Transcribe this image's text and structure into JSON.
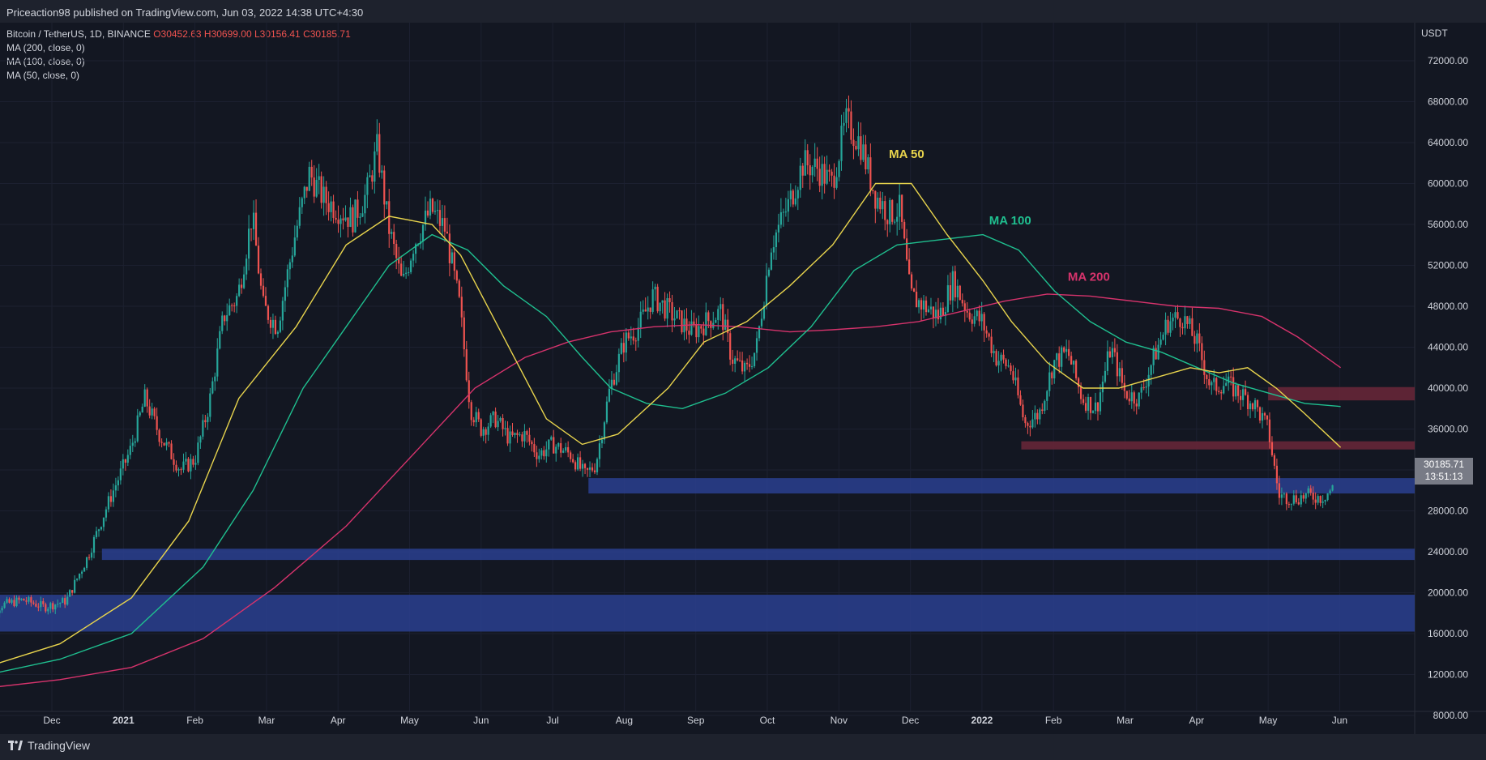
{
  "header": {
    "publish_line": "Priceaction98 published on TradingView.com, Jun 03, 2022 14:38 UTC+4:30"
  },
  "legend": {
    "symbol": "Bitcoin / TetherUS, 1D, BINANCE",
    "open": "O30452.63",
    "high": "H30699.00",
    "low": "L30156.41",
    "close": "C30185.71",
    "indicators": [
      "MA (200, close, 0)",
      "MA (100, close, 0)",
      "MA (50, close, 0)"
    ]
  },
  "axis": {
    "unit": "USDT",
    "current_price": "30185.71",
    "countdown": "13:51:13"
  },
  "footer": {
    "brand": "TradingView"
  },
  "colors": {
    "background": "#131722",
    "up": "#26a69a",
    "down": "#ef5350",
    "ma50": "#e8d44d",
    "ma100": "#1fbf8f",
    "ma200": "#d6336c",
    "support_zone": "#2a3f8f",
    "resistance_zone": "#6b2738"
  },
  "chart_data": {
    "type": "candlestick",
    "y_ticks": [
      8000,
      12000,
      16000,
      20000,
      24000,
      28000,
      32000,
      36000,
      40000,
      44000,
      48000,
      52000,
      56000,
      60000,
      64000,
      68000,
      72000
    ],
    "y_tick_labels": [
      "8000.00",
      "12000.00",
      "16000.00",
      "20000.00",
      "24000.00",
      "28000.00",
      "32000.00",
      "36000.00",
      "40000.00",
      "44000.00",
      "48000.00",
      "52000.00",
      "56000.00",
      "60000.00",
      "64000.00",
      "68000.00",
      "72000.00"
    ],
    "x_ticks": [
      {
        "label": "Dec",
        "month": 1,
        "year": false
      },
      {
        "label": "2021",
        "month": 2,
        "year": true
      },
      {
        "label": "Feb",
        "month": 3,
        "year": false
      },
      {
        "label": "Mar",
        "month": 4,
        "year": false
      },
      {
        "label": "Apr",
        "month": 5,
        "year": false
      },
      {
        "label": "May",
        "month": 6,
        "year": false
      },
      {
        "label": "Jun",
        "month": 7,
        "year": false
      },
      {
        "label": "Jul",
        "month": 8,
        "year": false
      },
      {
        "label": "Aug",
        "month": 9,
        "year": false
      },
      {
        "label": "Sep",
        "month": 10,
        "year": false
      },
      {
        "label": "Oct",
        "month": 11,
        "year": false
      },
      {
        "label": "Nov",
        "month": 12,
        "year": false
      },
      {
        "label": "Dec",
        "month": 13,
        "year": false
      },
      {
        "label": "2022",
        "month": 14,
        "year": true
      },
      {
        "label": "Feb",
        "month": 15,
        "year": false
      },
      {
        "label": "Mar",
        "month": 16,
        "year": false
      },
      {
        "label": "Apr",
        "month": 17,
        "year": false
      },
      {
        "label": "May",
        "month": 18,
        "year": false
      },
      {
        "label": "Jun",
        "month": 19,
        "year": false
      }
    ],
    "price_path": [
      [
        0.0,
        17000
      ],
      [
        0.3,
        18800
      ],
      [
        0.6,
        19300
      ],
      [
        0.9,
        18600
      ],
      [
        1.2,
        19200
      ],
      [
        1.5,
        23500
      ],
      [
        1.8,
        29000
      ],
      [
        2.1,
        34000
      ],
      [
        2.3,
        39000
      ],
      [
        2.5,
        35500
      ],
      [
        2.8,
        32000
      ],
      [
        3.0,
        33000
      ],
      [
        3.2,
        38500
      ],
      [
        3.4,
        47000
      ],
      [
        3.6,
        49000
      ],
      [
        3.8,
        57000
      ],
      [
        3.95,
        48000
      ],
      [
        4.15,
        46000
      ],
      [
        4.4,
        55000
      ],
      [
        4.6,
        61000
      ],
      [
        4.8,
        58500
      ],
      [
        5.0,
        57500
      ],
      [
        5.2,
        56500
      ],
      [
        5.4,
        59000
      ],
      [
        5.55,
        63500
      ],
      [
        5.7,
        56000
      ],
      [
        5.9,
        50000
      ],
      [
        6.05,
        54000
      ],
      [
        6.3,
        57500
      ],
      [
        6.5,
        55500
      ],
      [
        6.7,
        48000
      ],
      [
        6.85,
        38000
      ],
      [
        7.0,
        36000
      ],
      [
        7.2,
        37000
      ],
      [
        7.4,
        35000
      ],
      [
        7.6,
        35500
      ],
      [
        7.8,
        33500
      ],
      [
        8.0,
        34500
      ],
      [
        8.25,
        33500
      ],
      [
        8.45,
        31500
      ],
      [
        8.6,
        32500
      ],
      [
        8.8,
        40000
      ],
      [
        9.0,
        44500
      ],
      [
        9.2,
        46000
      ],
      [
        9.4,
        49000
      ],
      [
        9.7,
        47000
      ],
      [
        9.95,
        45500
      ],
      [
        10.15,
        46500
      ],
      [
        10.35,
        47500
      ],
      [
        10.5,
        43000
      ],
      [
        10.7,
        41500
      ],
      [
        10.85,
        44000
      ],
      [
        11.05,
        54000
      ],
      [
        11.3,
        58000
      ],
      [
        11.5,
        62000
      ],
      [
        11.7,
        61500
      ],
      [
        11.9,
        60000
      ],
      [
        12.1,
        66000
      ],
      [
        12.3,
        64000
      ],
      [
        12.5,
        59000
      ],
      [
        12.7,
        57000
      ],
      [
        12.85,
        57500
      ],
      [
        13.0,
        49000
      ],
      [
        13.2,
        48000
      ],
      [
        13.4,
        47000
      ],
      [
        13.6,
        50500
      ],
      [
        13.8,
        47500
      ],
      [
        14.0,
        46500
      ],
      [
        14.2,
        43000
      ],
      [
        14.4,
        42000
      ],
      [
        14.6,
        36500
      ],
      [
        14.8,
        37500
      ],
      [
        15.0,
        42500
      ],
      [
        15.2,
        43500
      ],
      [
        15.4,
        39000
      ],
      [
        15.6,
        38000
      ],
      [
        15.8,
        44000
      ],
      [
        16.0,
        39500
      ],
      [
        16.2,
        39000
      ],
      [
        16.4,
        43000
      ],
      [
        16.6,
        46500
      ],
      [
        16.8,
        47000
      ],
      [
        17.0,
        44500
      ],
      [
        17.2,
        40000
      ],
      [
        17.4,
        40500
      ],
      [
        17.6,
        39500
      ],
      [
        17.8,
        38500
      ],
      [
        18.0,
        36000
      ],
      [
        18.15,
        29500
      ],
      [
        18.35,
        29200
      ],
      [
        18.55,
        29500
      ],
      [
        18.75,
        29300
      ],
      [
        18.9,
        30185
      ]
    ],
    "ma50": [
      [
        0.0,
        12800
      ],
      [
        1.0,
        15000
      ],
      [
        2.0,
        19500
      ],
      [
        2.8,
        27000
      ],
      [
        3.5,
        39000
      ],
      [
        4.3,
        46000
      ],
      [
        5.0,
        54000
      ],
      [
        5.6,
        56800
      ],
      [
        6.2,
        56000
      ],
      [
        6.6,
        53000
      ],
      [
        7.2,
        45000
      ],
      [
        7.8,
        37000
      ],
      [
        8.3,
        34500
      ],
      [
        8.8,
        35500
      ],
      [
        9.5,
        40000
      ],
      [
        10.0,
        44500
      ],
      [
        10.6,
        46500
      ],
      [
        11.2,
        50000
      ],
      [
        11.8,
        54000
      ],
      [
        12.4,
        60000
      ],
      [
        12.9,
        60000
      ],
      [
        13.4,
        55000
      ],
      [
        13.9,
        50500
      ],
      [
        14.3,
        46500
      ],
      [
        14.8,
        42500
      ],
      [
        15.3,
        40000
      ],
      [
        15.8,
        40000
      ],
      [
        16.3,
        41000
      ],
      [
        16.8,
        42000
      ],
      [
        17.2,
        41500
      ],
      [
        17.6,
        42000
      ],
      [
        18.0,
        40000
      ],
      [
        18.4,
        37500
      ],
      [
        18.9,
        34200
      ]
    ],
    "ma100": [
      [
        0.0,
        12000
      ],
      [
        1.0,
        13500
      ],
      [
        2.0,
        16000
      ],
      [
        3.0,
        22500
      ],
      [
        3.7,
        30000
      ],
      [
        4.4,
        40000
      ],
      [
        5.0,
        46000
      ],
      [
        5.6,
        52000
      ],
      [
        6.2,
        55000
      ],
      [
        6.7,
        53500
      ],
      [
        7.2,
        50000
      ],
      [
        7.8,
        47000
      ],
      [
        8.3,
        43000
      ],
      [
        8.7,
        40000
      ],
      [
        9.2,
        38500
      ],
      [
        9.7,
        38000
      ],
      [
        10.3,
        39500
      ],
      [
        10.9,
        42000
      ],
      [
        11.5,
        46000
      ],
      [
        12.1,
        51500
      ],
      [
        12.7,
        54000
      ],
      [
        13.3,
        54500
      ],
      [
        13.9,
        55000
      ],
      [
        14.4,
        53500
      ],
      [
        14.9,
        49500
      ],
      [
        15.4,
        46500
      ],
      [
        15.9,
        44500
      ],
      [
        16.4,
        43500
      ],
      [
        16.9,
        42000
      ],
      [
        17.4,
        40500
      ],
      [
        17.9,
        39500
      ],
      [
        18.4,
        38500
      ],
      [
        18.9,
        38200
      ]
    ],
    "ma200": [
      [
        0.0,
        10700
      ],
      [
        1.0,
        11500
      ],
      [
        2.0,
        12700
      ],
      [
        3.0,
        15500
      ],
      [
        4.0,
        20500
      ],
      [
        5.0,
        26500
      ],
      [
        6.0,
        34000
      ],
      [
        6.8,
        40000
      ],
      [
        7.5,
        43000
      ],
      [
        8.1,
        44500
      ],
      [
        8.7,
        45500
      ],
      [
        9.3,
        46000
      ],
      [
        9.9,
        46200
      ],
      [
        10.5,
        46000
      ],
      [
        11.2,
        45500
      ],
      [
        11.8,
        45700
      ],
      [
        12.4,
        46000
      ],
      [
        13.0,
        46500
      ],
      [
        13.6,
        47500
      ],
      [
        14.2,
        48500
      ],
      [
        14.8,
        49200
      ],
      [
        15.4,
        49000
      ],
      [
        16.0,
        48500
      ],
      [
        16.6,
        48000
      ],
      [
        17.2,
        47800
      ],
      [
        17.8,
        47000
      ],
      [
        18.3,
        45000
      ],
      [
        18.9,
        42000
      ]
    ],
    "zones": [
      {
        "kind": "support",
        "y_low": 16200,
        "y_high": 19800,
        "x_start": 0.25
      },
      {
        "kind": "support",
        "y_low": 23200,
        "y_high": 24300,
        "x_start": 1.7
      },
      {
        "kind": "support",
        "y_low": 29700,
        "y_high": 31200,
        "x_start": 8.5
      },
      {
        "kind": "resistance",
        "y_low": 34000,
        "y_high": 34800,
        "x_start": 14.55
      },
      {
        "kind": "resistance",
        "y_low": 38800,
        "y_high": 40100,
        "x_start": 18.0
      }
    ],
    "ma_labels": [
      {
        "text": "MA 50",
        "x": 12.7,
        "y": 62500,
        "series": "ma50"
      },
      {
        "text": "MA 100",
        "x": 14.1,
        "y": 56000,
        "series": "ma100"
      },
      {
        "text": "MA 200",
        "x": 15.2,
        "y": 50500,
        "series": "ma200"
      }
    ]
  }
}
